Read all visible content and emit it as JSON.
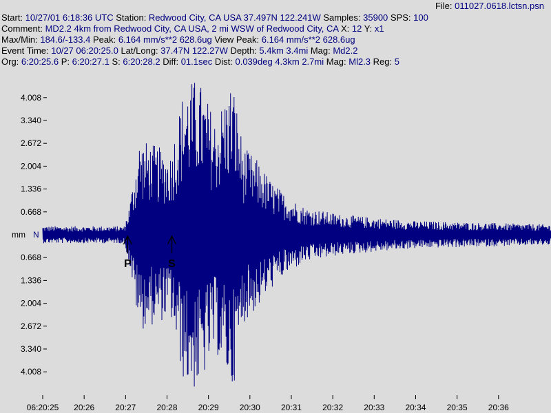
{
  "header": {
    "file_label": "File: ",
    "file_value": "011027.0618.lctsn.psn",
    "start_label": "Start: ",
    "start_value": "10/27/01  6:18:36 UTC",
    "station_label": " Station: ",
    "station_value": "Redwood City, CA USA 37.497N 122.241W",
    "samples_label": " Samples: ",
    "samples_value": "35900",
    "sps_label": "  SPS: ",
    "sps_value": "100",
    "comment_label": "Comment: ",
    "comment_value": "MD2.2 4km from Redwood City, CA USA, 2 mi WSW of Redwood City, CA",
    "xy_label": "   X: ",
    "x_value": "12",
    "y_label": " Y: ",
    "y_value": "x1",
    "maxmin_label": "Max/Min: ",
    "maxmin_value": "184.6/-133.4",
    "peak_label": "  Peak: ",
    "peak_value": "6.164 mm/s**2 628.6ug",
    "viewpeak_label": "  View Peak:  ",
    "viewpeak_value": "6.164 mm/s**2 628.6ug",
    "eventtime_label": "Event Time: ",
    "eventtime_value": "10/27 06:20:25.0",
    "latlong_label": " Lat/Long: ",
    "latlong_value": "37.47N 122.27W",
    "depth_label": " Depth: ",
    "depth_value": "5.4km 3.4mi",
    "mag_label": " Mag: ",
    "mag_value": "Md2.2",
    "org_label": "Org: ",
    "org_value": "6:20:25.6",
    "p_label": " P: ",
    "p_value": "6:20:27.1",
    "s_label": "  S: ",
    "s_value": "6:20:28.2",
    "diff_label": "  Diff: ",
    "diff_value": "01.1sec",
    "dist_label": " Dist: ",
    "dist_value": "0.039deg 4.3km 2.7mi",
    "mag2_label": "  Mag: ",
    "mag2_value": "Ml2.3",
    "reg_label": " Reg: ",
    "reg_value": "5"
  },
  "colors": {
    "background": "#dcdcdc",
    "trace": "#000080",
    "text": "#000000",
    "value_text": "#000080"
  },
  "chart_data": {
    "type": "line",
    "title": "",
    "xlabel": "",
    "ylabel": "mm",
    "y_center_label": "N",
    "ylim": [
      -4.4,
      4.4
    ],
    "y_ticks": [
      4.008,
      3.34,
      2.672,
      2.004,
      1.336,
      0.668,
      -0.668,
      -1.336,
      -2.004,
      -2.672,
      -3.34,
      -4.008
    ],
    "y_tick_labels": [
      "4.008",
      "3.340",
      "2.672",
      "2.004",
      "1.336",
      "0.668",
      "0.668",
      "1.336",
      "2.004",
      "2.672",
      "3.340",
      "4.008"
    ],
    "x_tick_labels": [
      "06:20:25",
      "20:26",
      "20:27",
      "20:28",
      "20:29",
      "20:30",
      "20:31",
      "20:32",
      "20:33",
      "20:34",
      "20:35",
      "20:36"
    ],
    "x_ticks_sec": [
      0,
      60,
      120,
      180,
      240,
      300,
      360,
      420,
      480,
      540,
      600,
      660
    ],
    "xlim_sec": [
      0,
      736
    ],
    "markers": [
      {
        "label": "P",
        "time_sec": 123
      },
      {
        "label": "S",
        "time_sec": 187
      }
    ],
    "envelope": [
      {
        "t": 0,
        "amp": 0.25
      },
      {
        "t": 118,
        "amp": 0.25
      },
      {
        "t": 125,
        "amp": 0.8
      },
      {
        "t": 140,
        "amp": 2.8
      },
      {
        "t": 165,
        "amp": 2.6
      },
      {
        "t": 185,
        "amp": 2.4
      },
      {
        "t": 205,
        "amp": 4.4
      },
      {
        "t": 225,
        "amp": 4.6
      },
      {
        "t": 250,
        "amp": 3.4
      },
      {
        "t": 275,
        "amp": 4.6
      },
      {
        "t": 290,
        "amp": 2.6
      },
      {
        "t": 310,
        "amp": 2.2
      },
      {
        "t": 330,
        "amp": 1.6
      },
      {
        "t": 350,
        "amp": 1.2
      },
      {
        "t": 380,
        "amp": 0.8
      },
      {
        "t": 430,
        "amp": 0.6
      },
      {
        "t": 480,
        "amp": 0.5
      },
      {
        "t": 540,
        "amp": 0.4
      },
      {
        "t": 736,
        "amp": 0.3
      }
    ]
  }
}
